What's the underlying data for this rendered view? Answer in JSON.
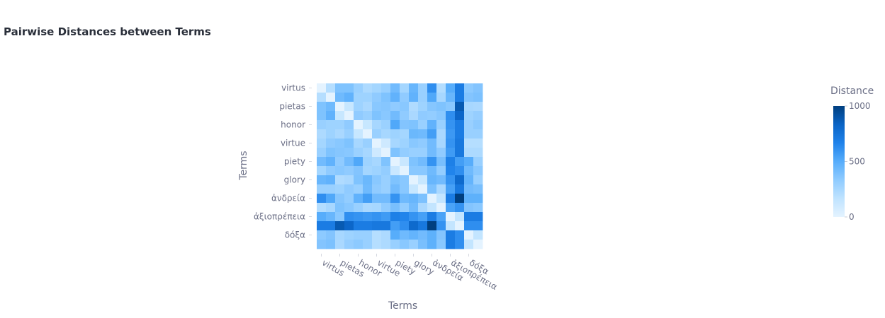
{
  "chart_data": {
    "type": "heatmap",
    "title": "Pairwise Distances between Terms",
    "xlabel": "Terms",
    "ylabel": "Terms",
    "x_tick_labels": [
      "virtus",
      "pietas",
      "honor",
      "virtue",
      "piety",
      "glory",
      "ἀνδρεία",
      "ἀξιοπρέπεια",
      "δόξα"
    ],
    "y_tick_labels": [
      "virtus",
      "pietas",
      "honor",
      "virtue",
      "piety",
      "glory",
      "ἀνδρεία",
      "ἀξιοπρέπεια",
      "δόξα"
    ],
    "colorbar": {
      "title": "Distance",
      "range": [
        0,
        1000
      ],
      "ticks": [
        "0",
        "500",
        "1000"
      ],
      "colors": [
        "#e4f3ff",
        "#bfe3ff",
        "#8fcbff",
        "#57adfb",
        "#1f82ea",
        "#0a64c6",
        "#003f7f"
      ]
    },
    "n_rows": 18,
    "n_cols": 18,
    "values": [
      [
        0,
        200,
        380,
        380,
        300,
        230,
        260,
        300,
        420,
        260,
        450,
        300,
        620,
        210,
        500,
        700,
        340,
        370
      ],
      [
        200,
        0,
        430,
        470,
        280,
        280,
        330,
        380,
        470,
        330,
        470,
        300,
        520,
        250,
        450,
        700,
        370,
        390
      ],
      [
        380,
        430,
        0,
        130,
        280,
        240,
        350,
        360,
        330,
        350,
        220,
        280,
        360,
        380,
        350,
        880,
        250,
        240
      ],
      [
        380,
        470,
        130,
        0,
        330,
        300,
        380,
        350,
        420,
        330,
        240,
        330,
        320,
        350,
        620,
        820,
        280,
        310
      ],
      [
        300,
        280,
        280,
        330,
        0,
        130,
        250,
        290,
        520,
        370,
        380,
        300,
        470,
        300,
        600,
        700,
        300,
        340
      ],
      [
        230,
        280,
        240,
        300,
        130,
        0,
        300,
        250,
        280,
        260,
        440,
        430,
        560,
        240,
        580,
        700,
        300,
        300
      ],
      [
        260,
        330,
        350,
        380,
        250,
        300,
        0,
        100,
        250,
        280,
        350,
        330,
        420,
        250,
        600,
        720,
        200,
        200
      ],
      [
        300,
        380,
        360,
        350,
        290,
        250,
        100,
        0,
        380,
        320,
        300,
        300,
        420,
        330,
        570,
        720,
        230,
        230
      ],
      [
        420,
        470,
        330,
        420,
        520,
        280,
        250,
        380,
        0,
        120,
        380,
        420,
        600,
        400,
        680,
        560,
        500,
        300
      ],
      [
        260,
        330,
        350,
        330,
        370,
        260,
        280,
        320,
        120,
        0,
        350,
        350,
        430,
        320,
        660,
        620,
        430,
        350
      ],
      [
        450,
        470,
        220,
        240,
        380,
        440,
        350,
        300,
        380,
        350,
        0,
        130,
        450,
        420,
        600,
        800,
        460,
        300
      ],
      [
        300,
        300,
        280,
        330,
        300,
        430,
        330,
        300,
        420,
        350,
        130,
        0,
        390,
        240,
        550,
        720,
        420,
        400
      ],
      [
        620,
        520,
        360,
        320,
        470,
        560,
        420,
        420,
        600,
        430,
        450,
        390,
        0,
        150,
        700,
        1000,
        480,
        480
      ],
      [
        210,
        250,
        380,
        350,
        300,
        240,
        250,
        330,
        400,
        320,
        420,
        240,
        150,
        0,
        540,
        600,
        370,
        350
      ],
      [
        500,
        450,
        350,
        620,
        600,
        580,
        600,
        570,
        680,
        660,
        600,
        550,
        700,
        540,
        0,
        150,
        700,
        700
      ],
      [
        700,
        700,
        880,
        820,
        700,
        700,
        720,
        720,
        560,
        620,
        800,
        720,
        1000,
        600,
        150,
        0,
        620,
        620
      ],
      [
        340,
        370,
        250,
        280,
        300,
        300,
        200,
        230,
        500,
        430,
        460,
        420,
        480,
        370,
        700,
        620,
        0,
        150
      ],
      [
        370,
        390,
        240,
        310,
        340,
        300,
        200,
        230,
        300,
        350,
        300,
        400,
        480,
        350,
        700,
        620,
        150,
        0
      ]
    ]
  }
}
